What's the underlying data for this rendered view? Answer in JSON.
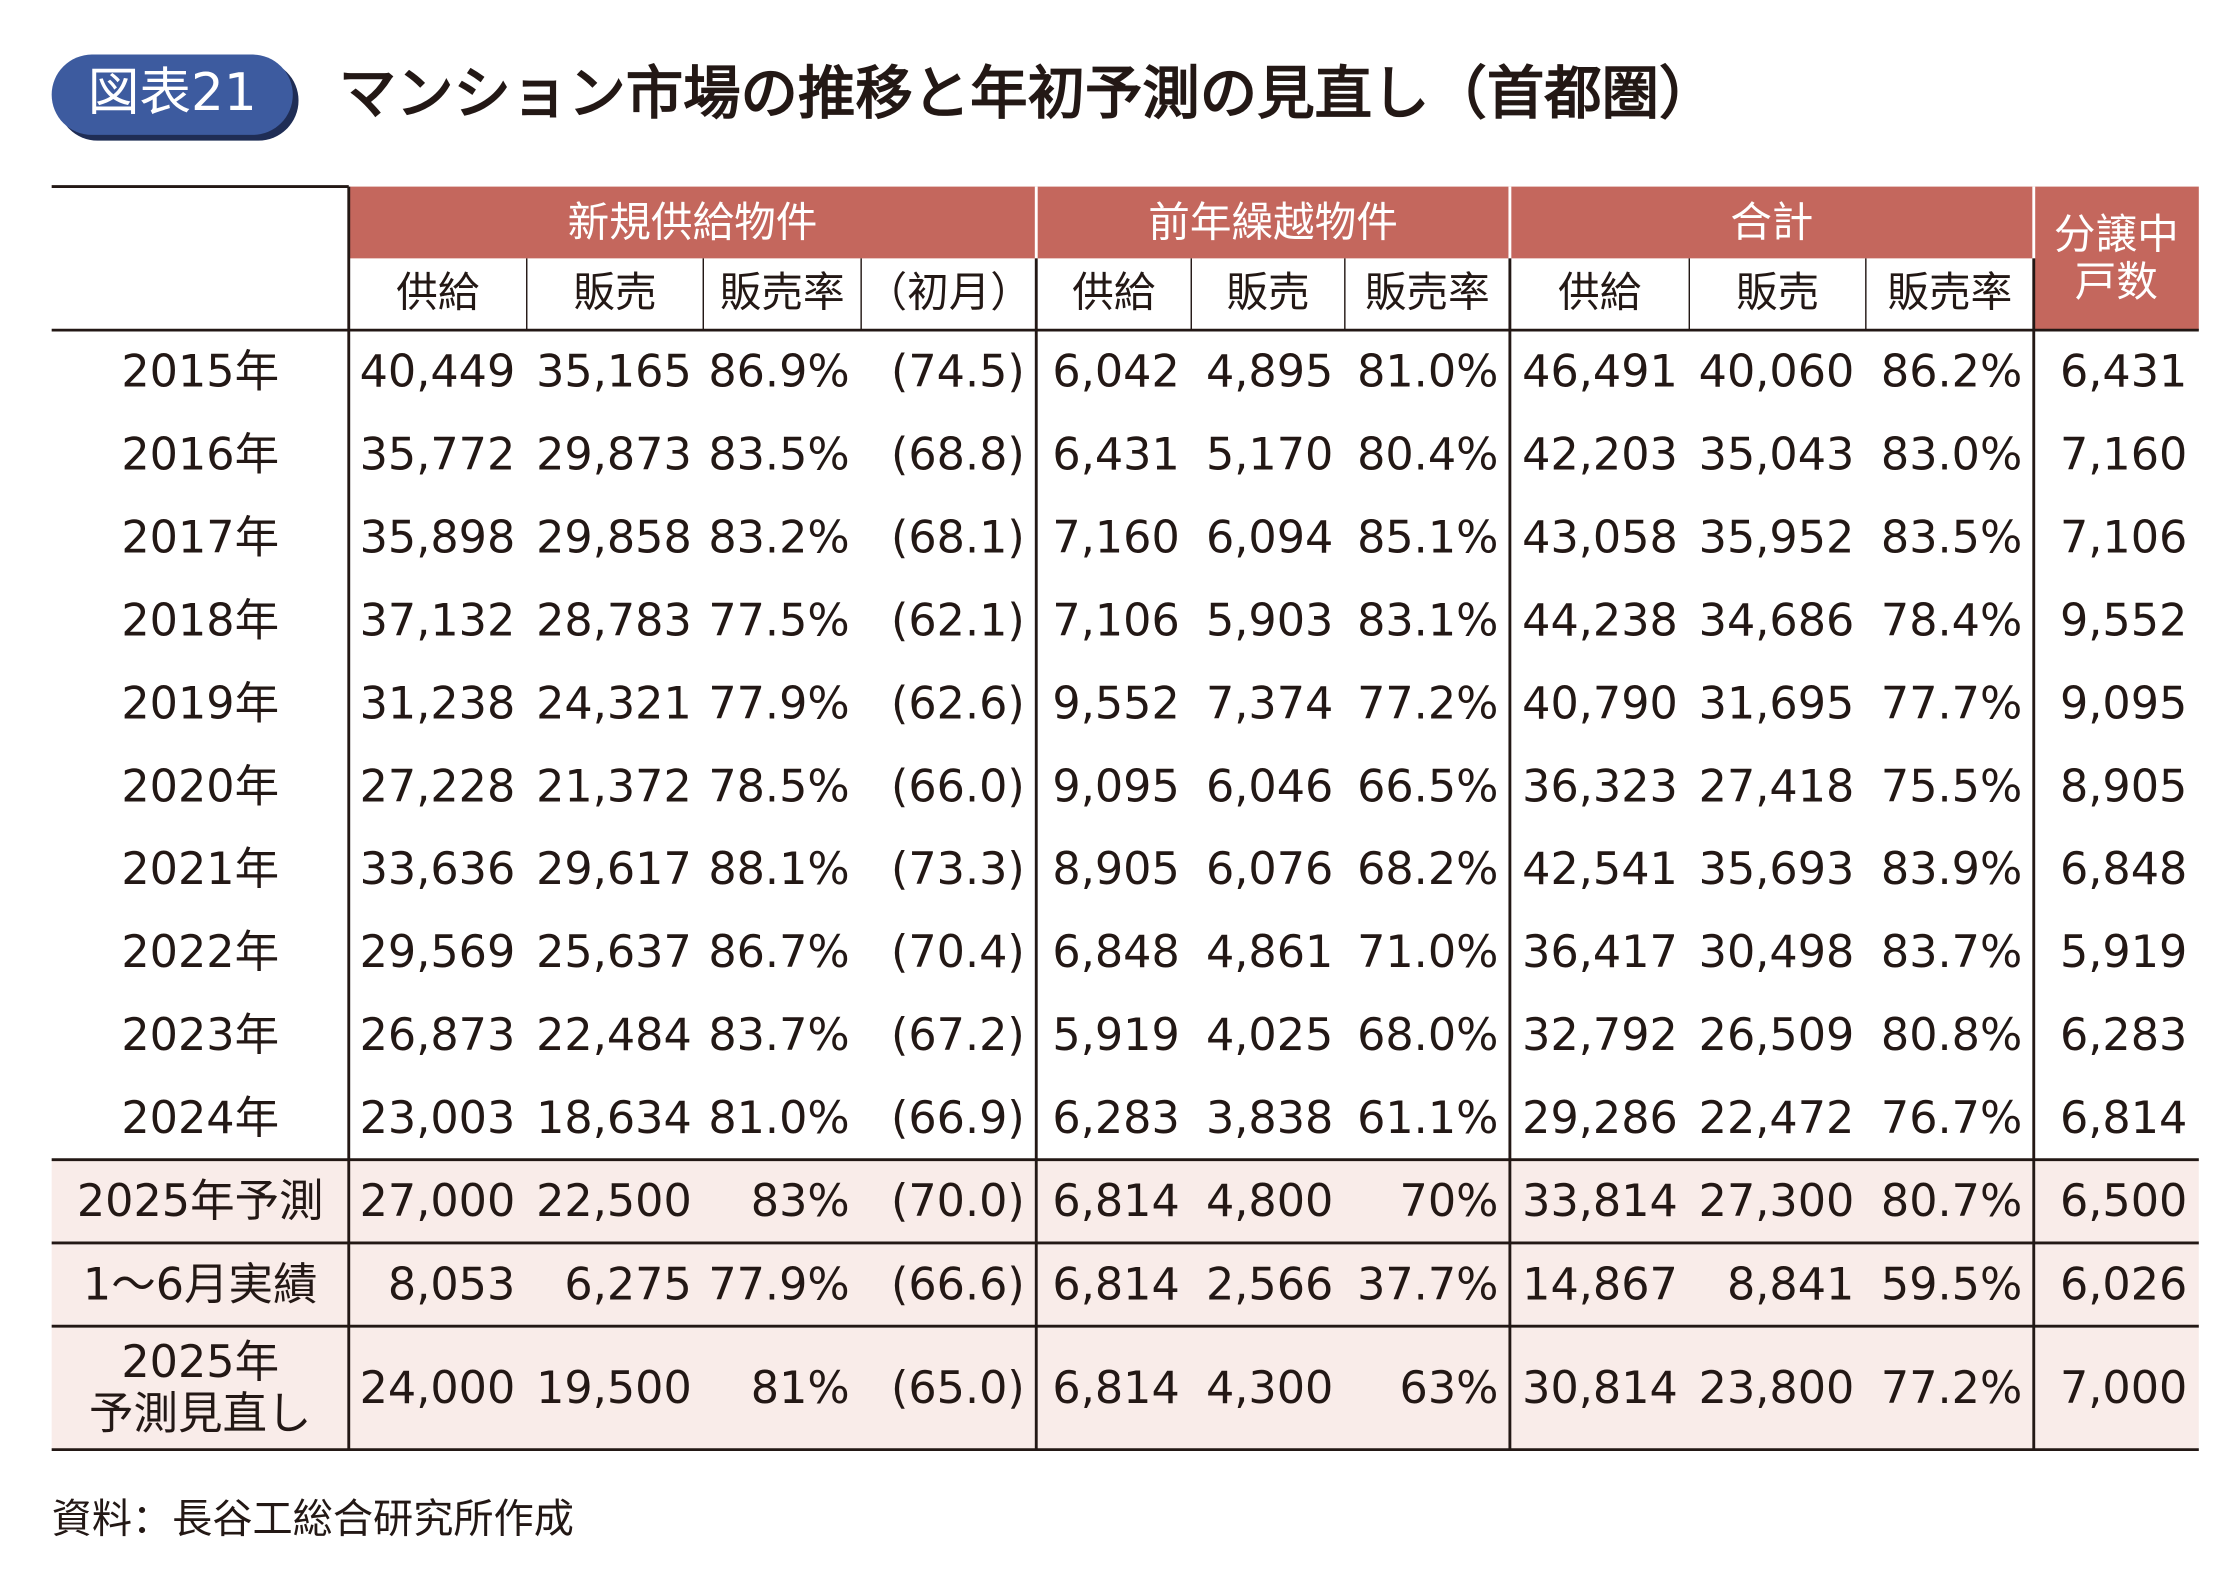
{
  "badge": "図表21",
  "title": "マンション市場の推移と年初予測の見直し（首都圏）",
  "table": {
    "groups": [
      "新規供給物件",
      "前年繰越物件",
      "合計",
      "分譲中\n戸数"
    ],
    "subheaders": [
      "供給",
      "販売",
      "販売率",
      "（初月）",
      "供給",
      "販売",
      "販売率",
      "供給",
      "販売",
      "販売率"
    ],
    "rows": [
      [
        "2015年",
        "40,449",
        "35,165",
        "86.9%",
        "(74.5)",
        "6,042",
        "4,895",
        "81.0%",
        "46,491",
        "40,060",
        "86.2%",
        "6,431"
      ],
      [
        "2016年",
        "35,772",
        "29,873",
        "83.5%",
        "(68.8)",
        "6,431",
        "5,170",
        "80.4%",
        "42,203",
        "35,043",
        "83.0%",
        "7,160"
      ],
      [
        "2017年",
        "35,898",
        "29,858",
        "83.2%",
        "(68.1)",
        "7,160",
        "6,094",
        "85.1%",
        "43,058",
        "35,952",
        "83.5%",
        "7,106"
      ],
      [
        "2018年",
        "37,132",
        "28,783",
        "77.5%",
        "(62.1)",
        "7,106",
        "5,903",
        "83.1%",
        "44,238",
        "34,686",
        "78.4%",
        "9,552"
      ],
      [
        "2019年",
        "31,238",
        "24,321",
        "77.9%",
        "(62.6)",
        "9,552",
        "7,374",
        "77.2%",
        "40,790",
        "31,695",
        "77.7%",
        "9,095"
      ],
      [
        "2020年",
        "27,228",
        "21,372",
        "78.5%",
        "(66.0)",
        "9,095",
        "6,046",
        "66.5%",
        "36,323",
        "27,418",
        "75.5%",
        "8,905"
      ],
      [
        "2021年",
        "33,636",
        "29,617",
        "88.1%",
        "(73.3)",
        "8,905",
        "6,076",
        "68.2%",
        "42,541",
        "35,693",
        "83.9%",
        "6,848"
      ],
      [
        "2022年",
        "29,569",
        "25,637",
        "86.7%",
        "(70.4)",
        "6,848",
        "4,861",
        "71.0%",
        "36,417",
        "30,498",
        "83.7%",
        "5,919"
      ],
      [
        "2023年",
        "26,873",
        "22,484",
        "83.7%",
        "(67.2)",
        "5,919",
        "4,025",
        "68.0%",
        "32,792",
        "26,509",
        "80.8%",
        "6,283"
      ],
      [
        "2024年",
        "23,003",
        "18,634",
        "81.0%",
        "(66.9)",
        "6,283",
        "3,838",
        "61.1%",
        "29,286",
        "22,472",
        "76.7%",
        "6,814"
      ],
      [
        "2025年予測",
        "27,000",
        "22,500",
        "83%",
        "(70.0)",
        "6,814",
        "4,800",
        "70%",
        "33,814",
        "27,300",
        "80.7%",
        "6,500"
      ],
      [
        "1～6月実績",
        "8,053",
        "6,275",
        "77.9%",
        "(66.6)",
        "6,814",
        "2,566",
        "37.7%",
        "14,867",
        "8,841",
        "59.5%",
        "6,026"
      ],
      [
        "2025年\n予測見直し",
        "24,000",
        "19,500",
        "81%",
        "(65.0)",
        "6,814",
        "4,300",
        "63%",
        "30,814",
        "23,800",
        "77.2%",
        "7,000"
      ]
    ]
  },
  "source": "資料：長谷工総合研究所作成"
}
